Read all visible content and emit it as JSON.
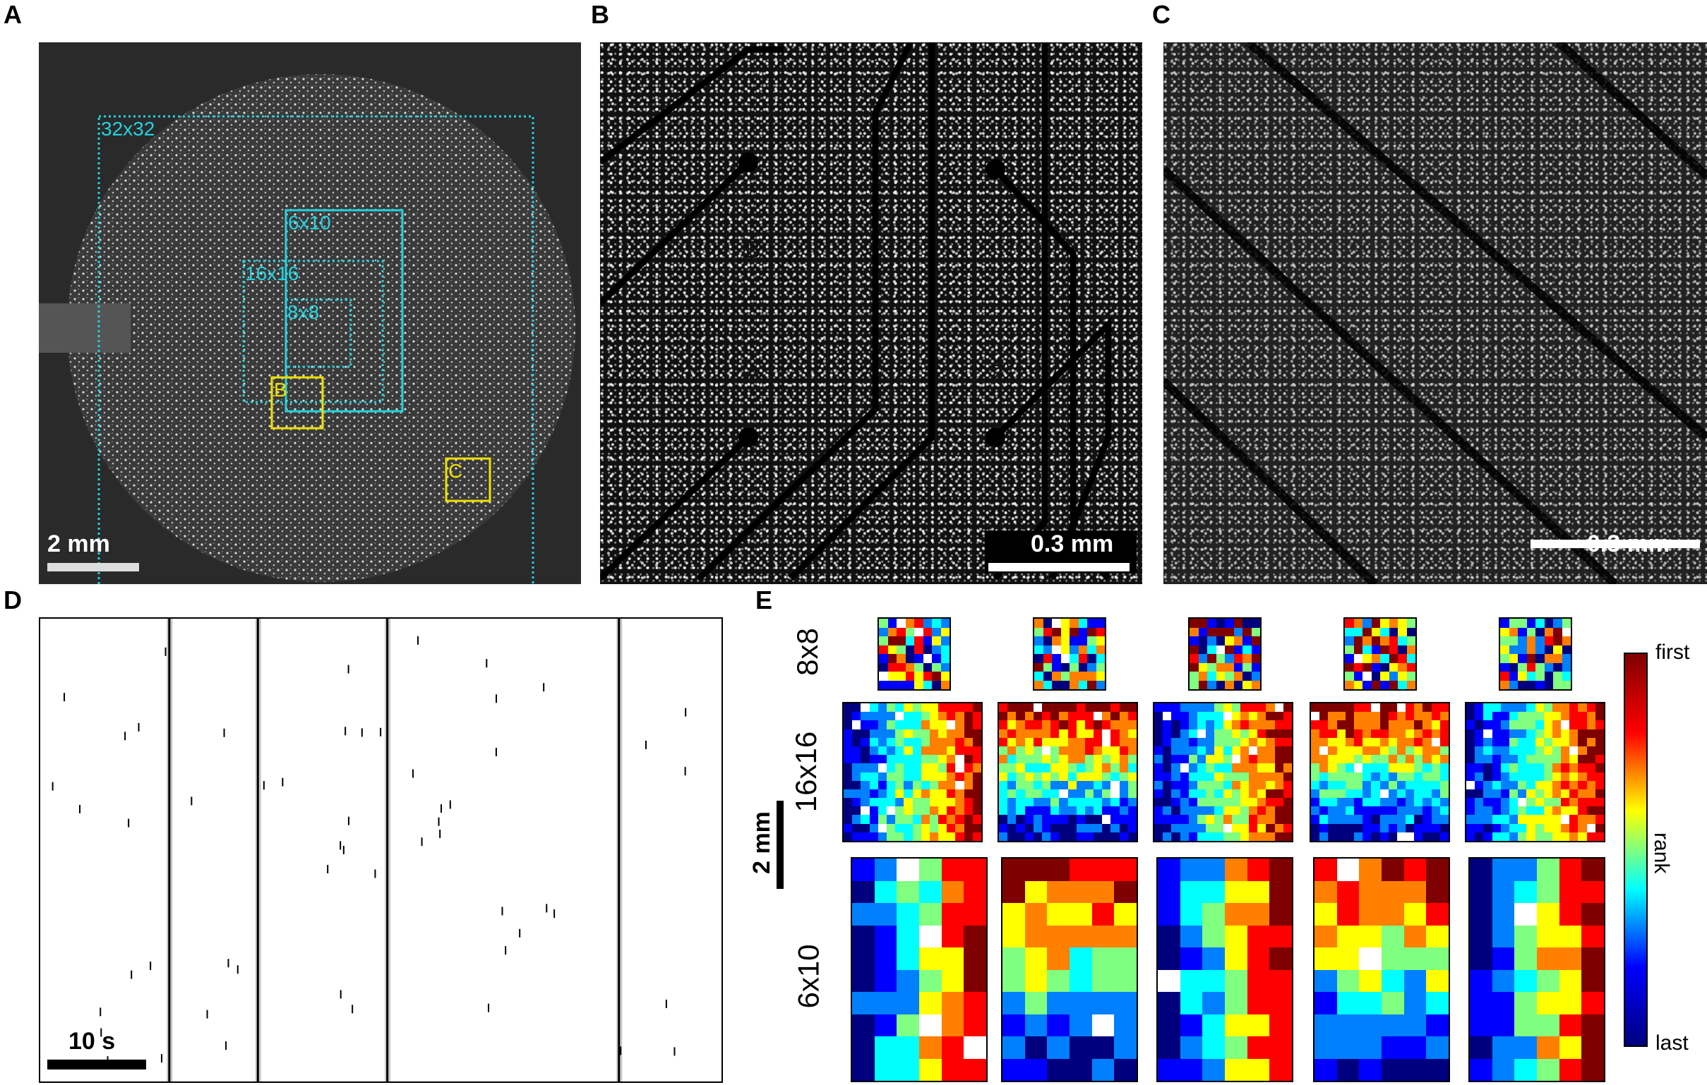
{
  "panels": {
    "A": "A",
    "B": "B",
    "C": "C",
    "D": "D",
    "E": "E"
  },
  "panelA": {
    "scale": "2 mm",
    "roi_labels": [
      "32x32",
      "6x10",
      "16x16",
      "8x8"
    ],
    "inset_labels": [
      "B",
      "C"
    ],
    "colors": {
      "roi": "#22d3e0",
      "inset": "#f0e000"
    }
  },
  "panelB": {
    "scale": "0.3 mm",
    "electrode_labels": [
      "B",
      "A",
      "Z"
    ]
  },
  "panelC": {
    "scale": "0.3 mm"
  },
  "panelD": {
    "scale": "10 s"
  },
  "panelE": {
    "row_labels": [
      "8x8",
      "16x16",
      "6x10"
    ],
    "scale": "2 mm",
    "colorbar": {
      "top": "first",
      "middle": "rank",
      "bottom": "last",
      "colormap": [
        "#00007f",
        "#0000ff",
        "#00ffff",
        "#ffff00",
        "#ff0000",
        "#7f0000"
      ]
    }
  },
  "chart_data": [
    {
      "type": "scatter",
      "title": "",
      "xlabel": "",
      "ylabel": "",
      "note_scale": "10 s",
      "burst_times_fraction": [
        0.19,
        0.32,
        0.51,
        0.85
      ]
    },
    {
      "type": "heatmap",
      "colorbar_range": [
        "first",
        "last"
      ],
      "grids": [
        "8x8",
        "16x16",
        "6x10"
      ],
      "columns": 5
    }
  ]
}
